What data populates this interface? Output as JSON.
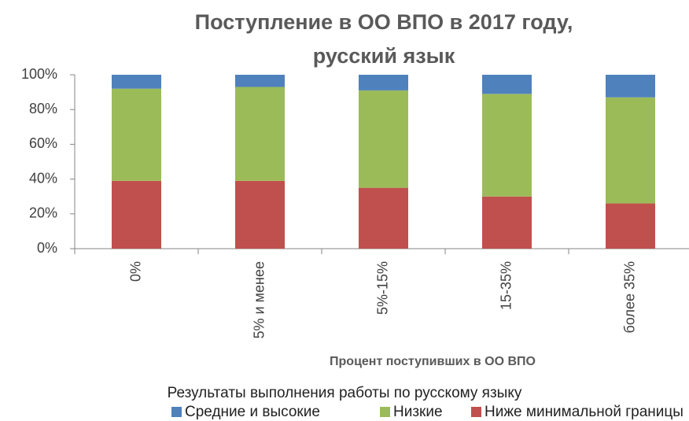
{
  "chart_data": {
    "type": "stacked_bar",
    "title": [
      "Поступление в ОО ВПО в 2017 году,",
      "русский язык"
    ],
    "x_label": "Процент поступивших в ОО ВПО",
    "legend_title": "Результаты выполнения работы по русскому языку",
    "categories": [
      "0%",
      "5% и менее",
      "5%-15%",
      "15-35%",
      "более 35%"
    ],
    "series": [
      {
        "name": "Средние и высокие",
        "color": "#4f81bd",
        "values": [
          8,
          7,
          9,
          11,
          13
        ]
      },
      {
        "name": "Низкие",
        "color": "#9bbb59",
        "values": [
          53,
          54,
          56,
          59,
          61
        ]
      },
      {
        "name": "Ниже минимальной границы",
        "color": "#c0504d",
        "values": [
          39,
          39,
          35,
          30,
          26
        ]
      }
    ],
    "ylim": [
      0,
      100
    ],
    "yticks": [
      {
        "value": 0,
        "label": "0%"
      },
      {
        "value": 20,
        "label": "20%"
      },
      {
        "value": 40,
        "label": "40%"
      },
      {
        "value": 60,
        "label": "60%"
      },
      {
        "value": 80,
        "label": "80%"
      },
      {
        "value": 100,
        "label": "100%"
      }
    ],
    "grid": false,
    "legend": "bottom"
  }
}
